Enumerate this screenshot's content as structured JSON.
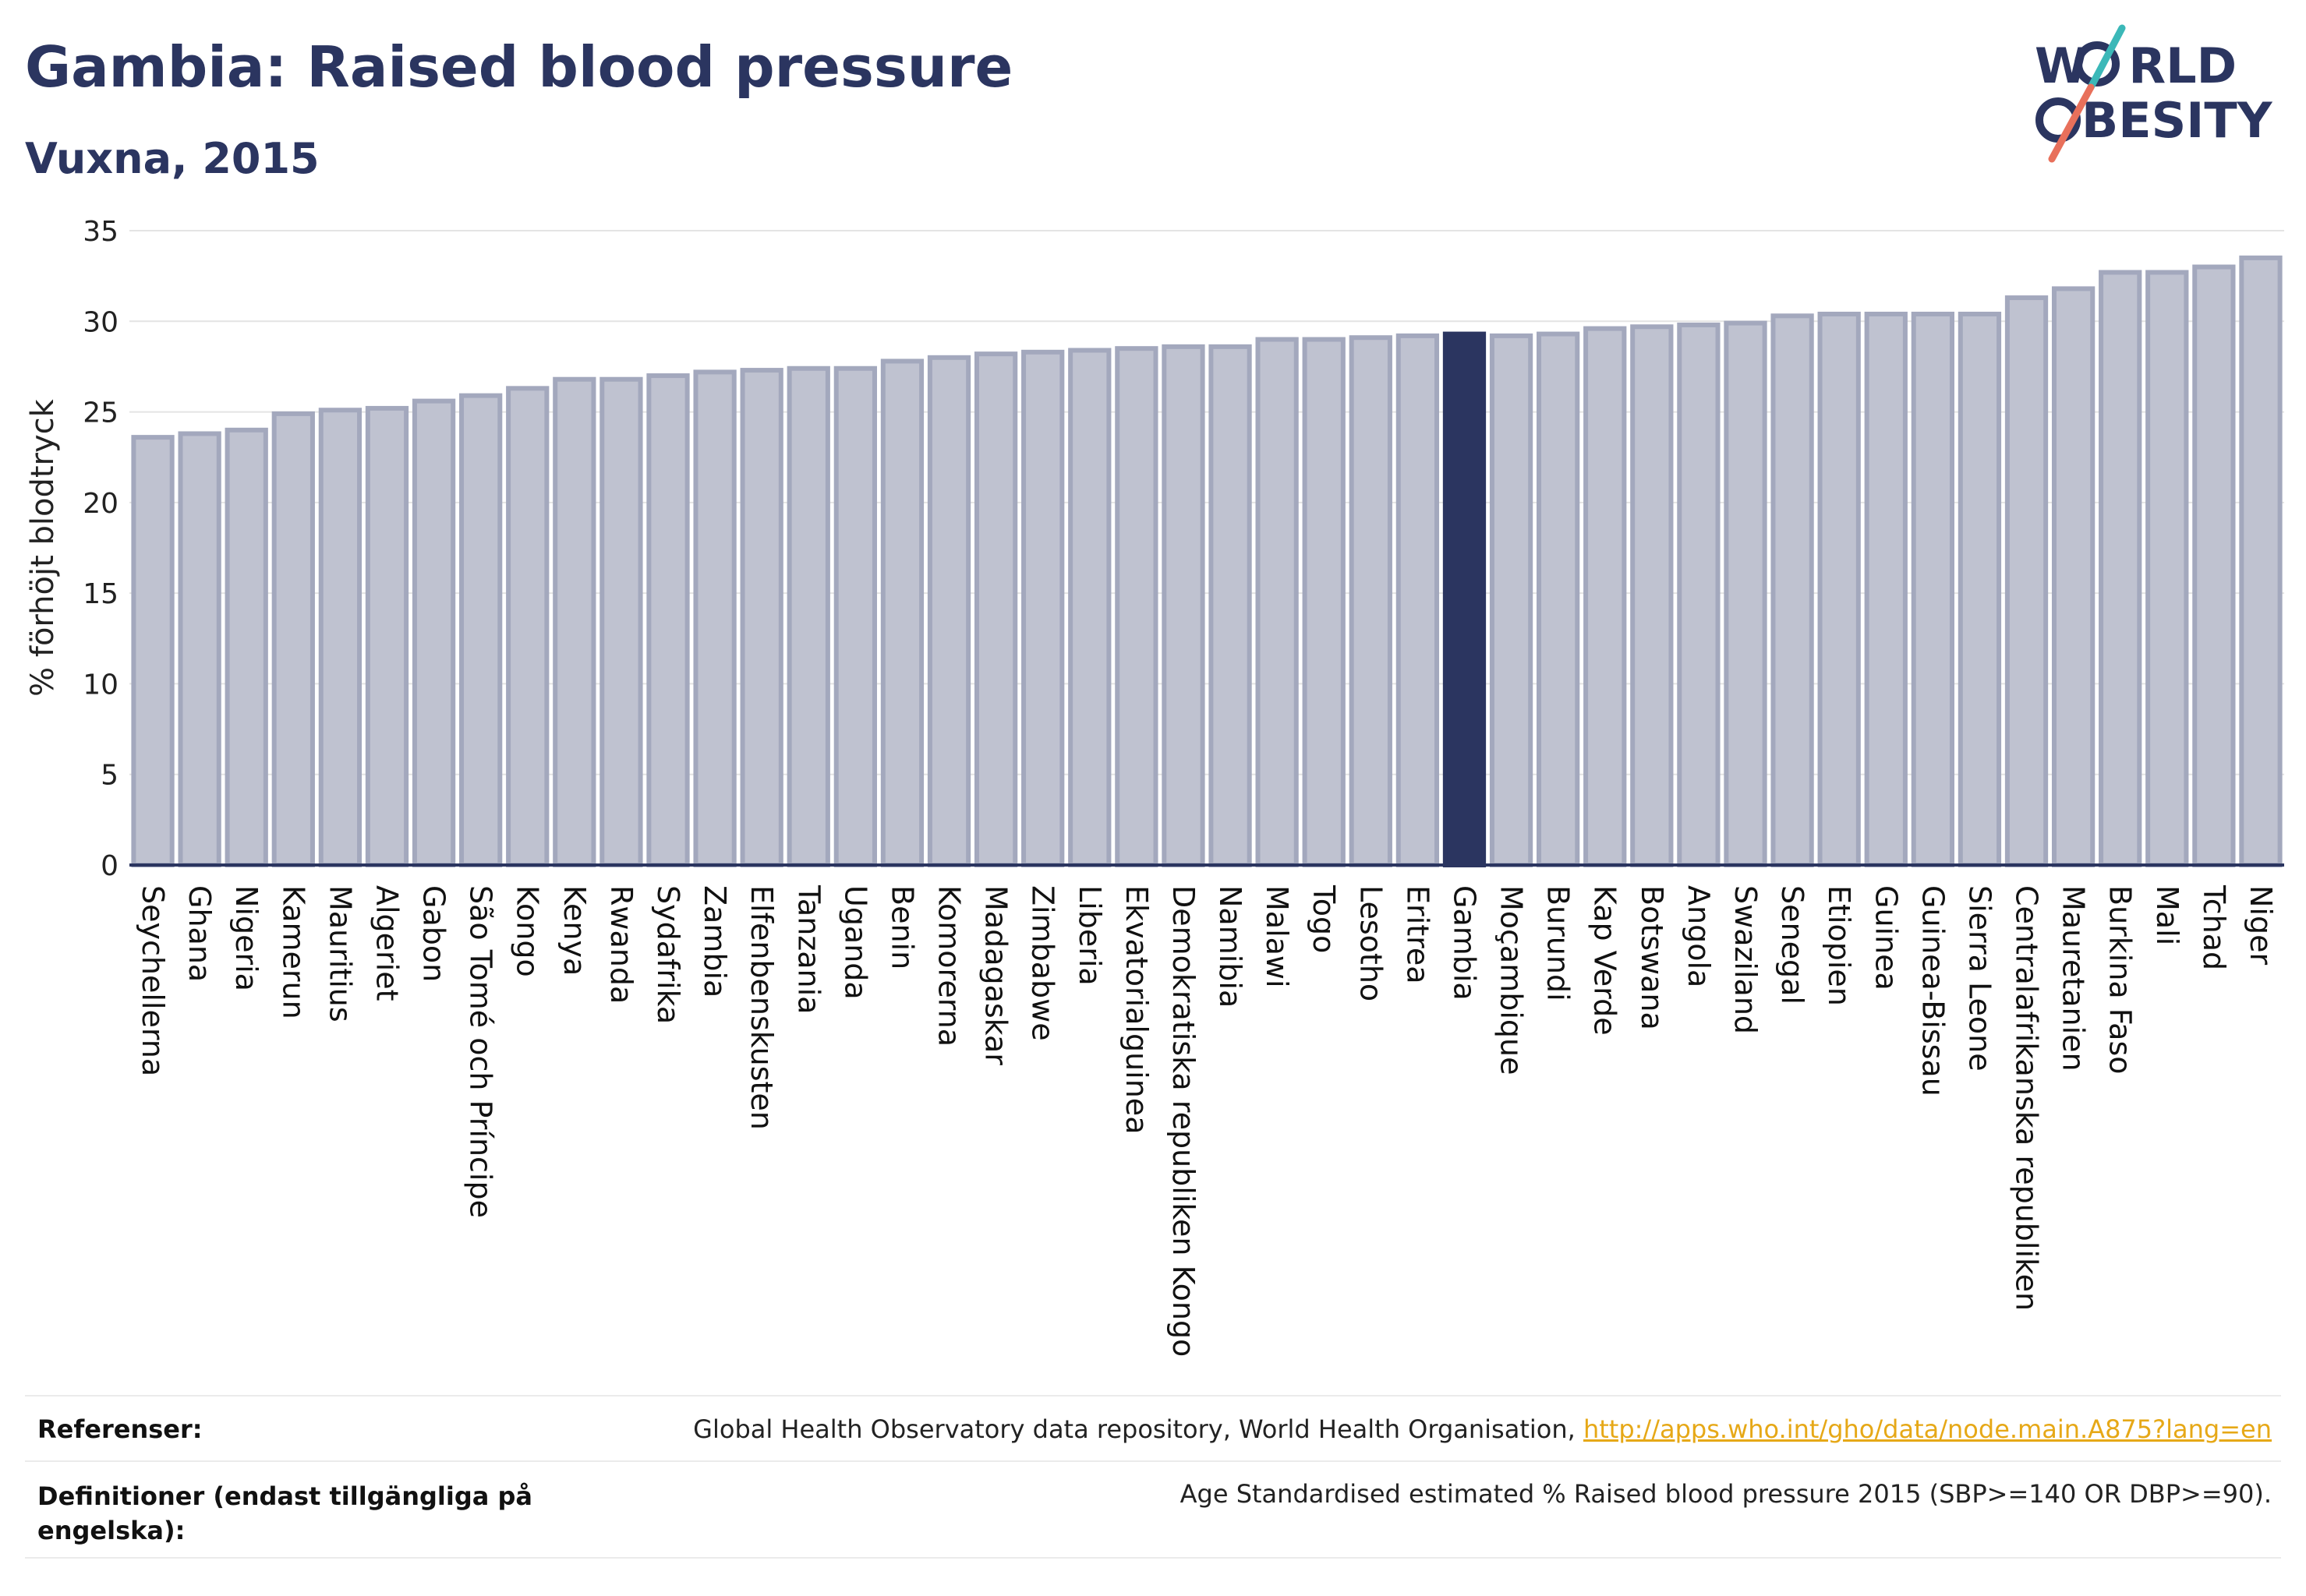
{
  "header": {
    "title": "Gambia: Raised blood pressure",
    "subtitle": "Vuxna, 2015",
    "logo_top": "W",
    "logo_top_rest": "RLD",
    "logo_bottom": "BESITY"
  },
  "chart_data": {
    "type": "bar",
    "title": "Gambia: Raised blood pressure",
    "subtitle": "Vuxna, 2015",
    "xlabel": "",
    "ylabel": "% förhöjt blodtryck",
    "ylim": [
      0,
      35
    ],
    "yticks": [
      0,
      5,
      10,
      15,
      20,
      25,
      30,
      35
    ],
    "grid": true,
    "highlight": "Gambia",
    "colors": {
      "bar": "#bfc2d0",
      "bar_edge": "#a3a8bd",
      "highlight": "#2b3560",
      "grid": "#e4e4e4",
      "axis": "#2b3560"
    },
    "categories": [
      "Seychellerna",
      "Ghana",
      "Nigeria",
      "Kamerun",
      "Mauritius",
      "Algeriet",
      "Gabon",
      "São Tomé och Príncipe",
      "Kongo",
      "Kenya",
      "Rwanda",
      "Sydafrika",
      "Zambia",
      "Elfenbenskusten",
      "Tanzania",
      "Uganda",
      "Benin",
      "Komorerna",
      "Madagaskar",
      "Zimbabwe",
      "Liberia",
      "Ekvatorialguinea",
      "Demokratiska republiken Kongo",
      "Namibia",
      "Malawi",
      "Togo",
      "Lesotho",
      "Eritrea",
      "Gambia",
      "Moçambique",
      "Burundi",
      "Kap Verde",
      "Botswana",
      "Angola",
      "Swaziland",
      "Senegal",
      "Etiopien",
      "Guinea",
      "Guinea-Bissau",
      "Sierra Leone",
      "Centralafrikanska republiken",
      "Mauretanien",
      "Burkina Faso",
      "Mali",
      "Tchad",
      "Niger"
    ],
    "values": [
      23.6,
      23.8,
      24.0,
      24.9,
      25.1,
      25.2,
      25.6,
      25.9,
      26.3,
      26.8,
      26.8,
      27.0,
      27.2,
      27.3,
      27.4,
      27.4,
      27.8,
      28.0,
      28.2,
      28.3,
      28.4,
      28.5,
      28.6,
      28.6,
      29.0,
      29.0,
      29.1,
      29.2,
      29.3,
      29.2,
      29.3,
      29.6,
      29.7,
      29.8,
      29.9,
      30.3,
      30.4,
      30.4,
      30.4,
      30.4,
      31.3,
      31.8,
      32.7,
      32.7,
      33.0,
      33.5
    ]
  },
  "footer": {
    "ref_label": "Referenser:",
    "ref_text": "Global Health Observatory data repository, World Health Organisation, ",
    "ref_link": "http://apps.who.int/gho/data/node.main.A875?lang=en",
    "def_label_1": "Definitioner (endast tillgängliga på",
    "def_label_2": "engelska):",
    "def_text": "Age Standardised estimated % Raised blood pressure 2015 (SBP>=140 OR DBP>=90)."
  }
}
